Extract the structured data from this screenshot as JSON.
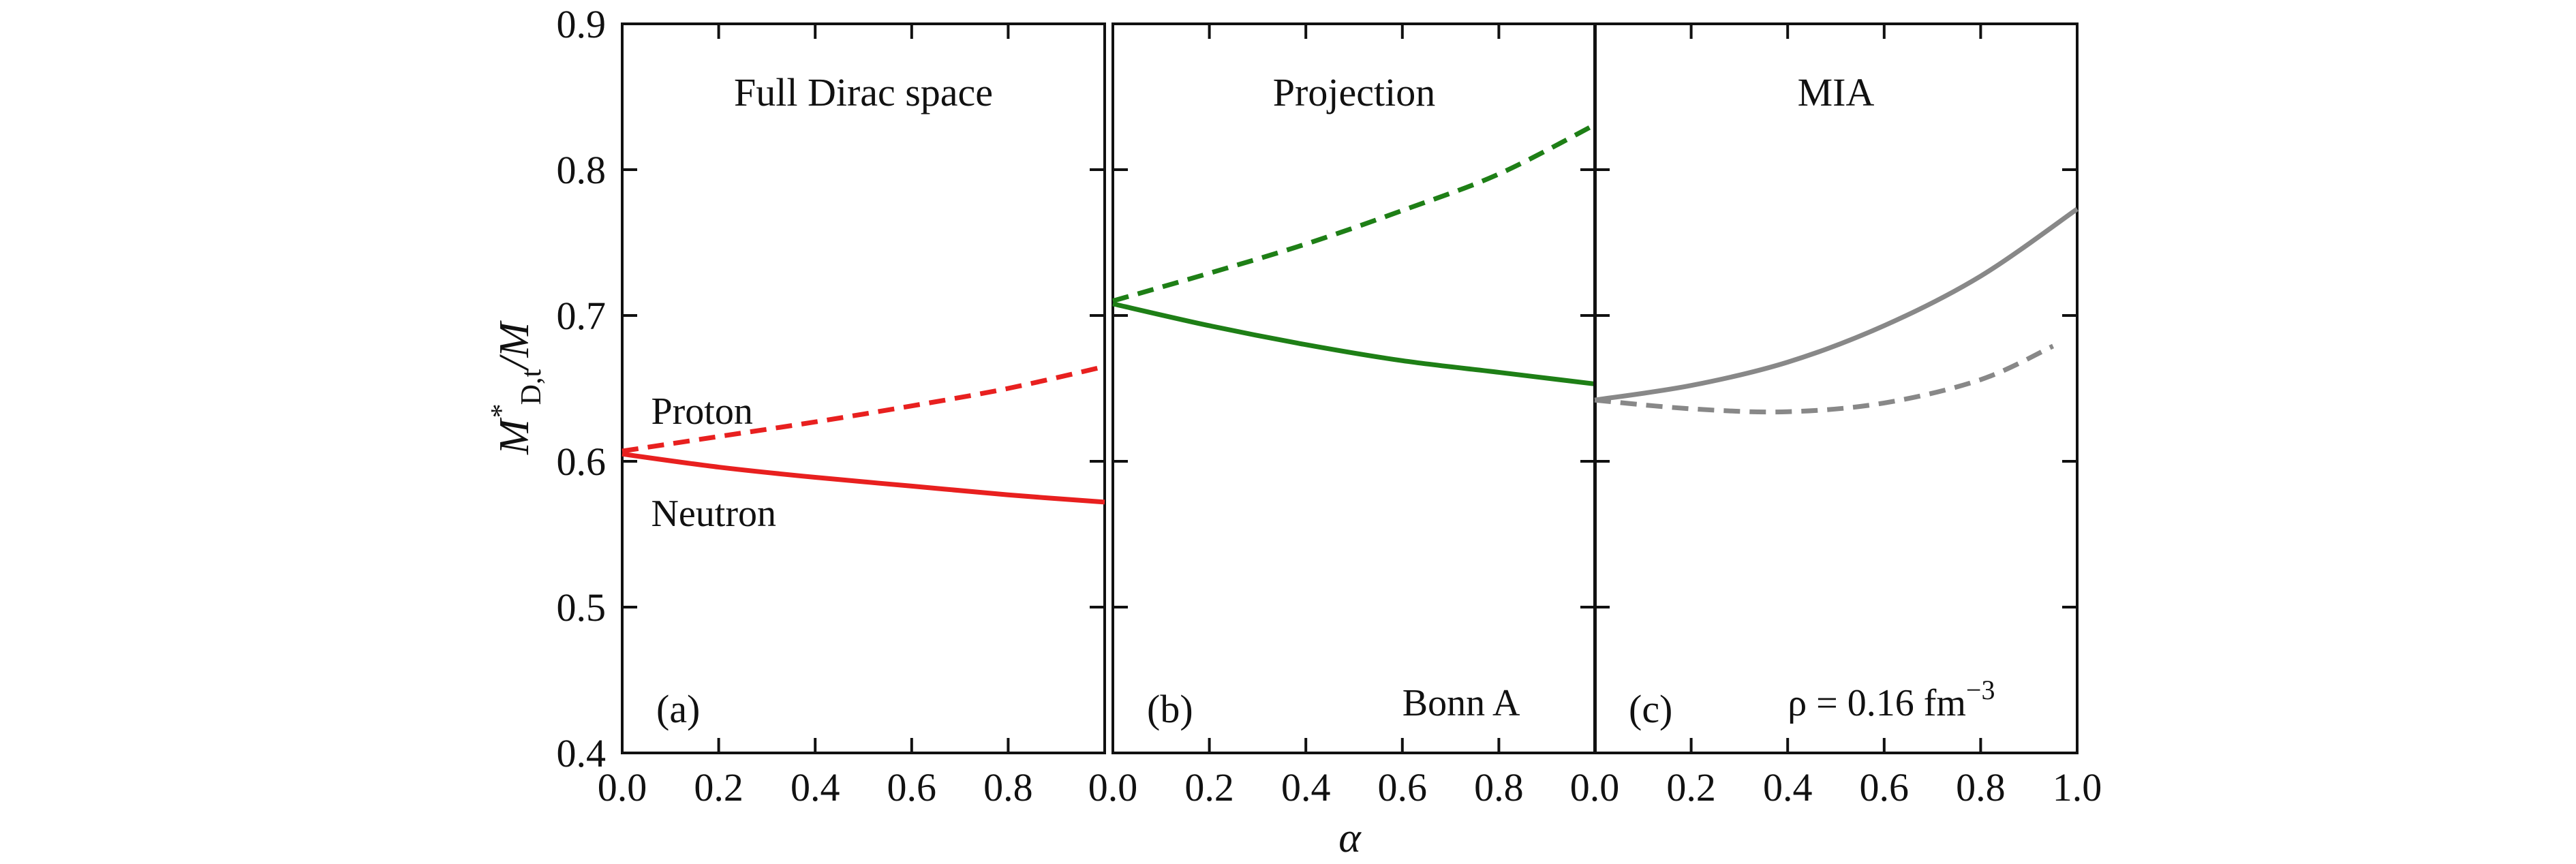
{
  "chart_data": {
    "type": "line",
    "ylabel": "M*D,t/M",
    "ylabel_parts": {
      "main": "M",
      "sup": "*",
      "sub": "D,t",
      "tail": "/M"
    },
    "xlabel": "α",
    "ylim": [
      0.4,
      0.9
    ],
    "yticks": [
      "0.4",
      "0.5",
      "0.6",
      "0.7",
      "0.8",
      "0.9"
    ],
    "xlim": [
      0.0,
      1.0
    ],
    "xticks_first_panels": [
      "0.0",
      "0.2",
      "0.4",
      "0.6",
      "0.8"
    ],
    "xticks_last_panel": [
      "0.0",
      "0.2",
      "0.4",
      "0.6",
      "0.8",
      "1.0"
    ],
    "grid": false,
    "panels": [
      {
        "tag": "(a)",
        "title": "Full Dirac space",
        "color": "#e8201f",
        "annotations": [
          {
            "text": "Proton",
            "x": 0.06,
            "y": 0.635
          },
          {
            "text": "Neutron",
            "x": 0.06,
            "y": 0.565
          }
        ],
        "series": [
          {
            "dash": "dashed",
            "x": [
              0.0,
              0.2,
              0.4,
              0.6,
              0.8,
              1.0
            ],
            "values": [
              0.607,
              0.617,
              0.627,
              0.638,
              0.65,
              0.665
            ]
          },
          {
            "dash": "solid",
            "x": [
              0.0,
              0.2,
              0.4,
              0.6,
              0.8,
              1.0
            ],
            "values": [
              0.605,
              0.596,
              0.589,
              0.583,
              0.577,
              0.572
            ]
          }
        ]
      },
      {
        "tag": "(b)",
        "title": "Projection",
        "color": "#1e7f16",
        "annotations": [
          {
            "text": "Bonn A",
            "x": 0.6,
            "y": 0.435
          }
        ],
        "series": [
          {
            "dash": "dashed",
            "x": [
              0.0,
              0.2,
              0.4,
              0.6,
              0.8,
              1.0
            ],
            "values": [
              0.71,
              0.729,
              0.749,
              0.772,
              0.797,
              0.831
            ]
          },
          {
            "dash": "solid",
            "x": [
              0.0,
              0.2,
              0.4,
              0.6,
              0.8,
              1.0
            ],
            "values": [
              0.708,
              0.693,
              0.68,
              0.669,
              0.661,
              0.653
            ]
          }
        ]
      },
      {
        "tag": "(c)",
        "title": "MIA",
        "color": "#888888",
        "annotations": [
          {
            "text": "ρ = 0.16 fm",
            "sup": "−3",
            "x": 0.4,
            "y": 0.435
          }
        ],
        "series": [
          {
            "dash": "solid",
            "x": [
              0.0,
              0.2,
              0.4,
              0.6,
              0.8,
              1.0
            ],
            "values": [
              0.642,
              0.652,
              0.668,
              0.693,
              0.727,
              0.773
            ]
          },
          {
            "dash": "dashed",
            "x": [
              0.0,
              0.2,
              0.4,
              0.6,
              0.8,
              0.95
            ],
            "values": [
              0.642,
              0.636,
              0.634,
              0.64,
              0.656,
              0.679
            ]
          }
        ]
      }
    ]
  }
}
